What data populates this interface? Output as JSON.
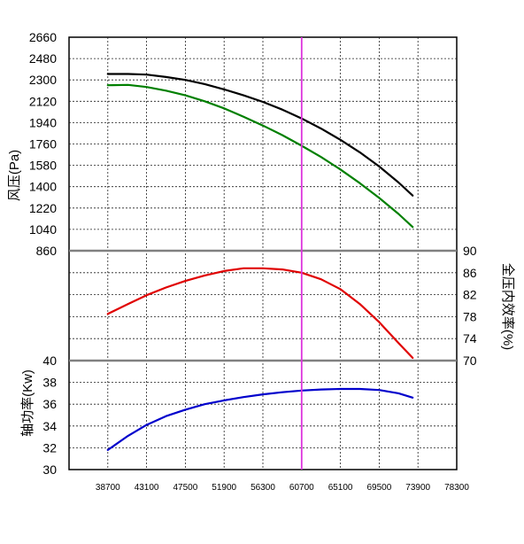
{
  "chart_data": {
    "type": "line",
    "x_ticks": [
      38700,
      43100,
      47500,
      51900,
      56300,
      60700,
      65100,
      69500,
      73900,
      78300
    ],
    "xlim": [
      34300,
      78300
    ],
    "marker_x": 60700,
    "panels": [
      {
        "id": "pressure",
        "ylabel": "风压(Pa)",
        "y_ticks": [
          860,
          1040,
          1220,
          1400,
          1580,
          1760,
          1940,
          2120,
          2300,
          2480,
          2660
        ],
        "ylim": [
          860,
          2660
        ],
        "series": [
          {
            "color": "#000000",
            "x": [
              38700,
              41000,
              43100,
              45300,
              47500,
              49700,
              51900,
              54100,
              56300,
              58500,
              60700,
              62900,
              65100,
              67300,
              69500,
              71700,
              73300
            ],
            "y": [
              2350,
              2350,
              2345,
              2325,
              2300,
              2265,
              2220,
              2170,
              2115,
              2050,
              1975,
              1890,
              1795,
              1690,
              1570,
              1435,
              1325
            ]
          },
          {
            "color": "#008000",
            "x": [
              38700,
              41000,
              43100,
              45300,
              47500,
              49700,
              51900,
              54100,
              56300,
              58500,
              60700,
              62900,
              65100,
              67300,
              69500,
              71700,
              73300
            ],
            "y": [
              2255,
              2258,
              2240,
              2210,
              2170,
              2120,
              2060,
              1990,
              1915,
              1835,
              1745,
              1650,
              1545,
              1430,
              1305,
              1170,
              1060
            ]
          }
        ]
      },
      {
        "id": "efficiency",
        "ylabel": "全压内效率(%)",
        "y_ticks": [
          70,
          74,
          78,
          82,
          86,
          90
        ],
        "ylim": [
          70,
          90
        ],
        "series": [
          {
            "color": "#e00000",
            "x": [
              38700,
              41000,
              43100,
              45300,
              47500,
              49700,
              51900,
              54100,
              56300,
              58500,
              60700,
              62900,
              65100,
              67300,
              69500,
              71700,
              73300
            ],
            "y": [
              78.5,
              80.3,
              81.9,
              83.3,
              84.5,
              85.5,
              86.3,
              86.8,
              86.8,
              86.6,
              86.0,
              84.8,
              83.0,
              80.3,
              77.0,
              73.2,
              70.5
            ]
          }
        ]
      },
      {
        "id": "power",
        "ylabel": "轴功率(Kw)",
        "y_ticks": [
          30,
          32,
          34,
          36,
          38,
          40
        ],
        "ylim": [
          30,
          40
        ],
        "series": [
          {
            "color": "#0000cc",
            "x": [
              38700,
              41000,
              43100,
              45300,
              47500,
              49700,
              51900,
              54100,
              56300,
              58500,
              60700,
              62900,
              65100,
              67300,
              69500,
              71700,
              73300
            ],
            "y": [
              31.8,
              33.1,
              34.1,
              34.9,
              35.5,
              36.0,
              36.35,
              36.65,
              36.9,
              37.1,
              37.25,
              37.35,
              37.4,
              37.4,
              37.3,
              37.0,
              36.6
            ]
          }
        ]
      }
    ]
  }
}
